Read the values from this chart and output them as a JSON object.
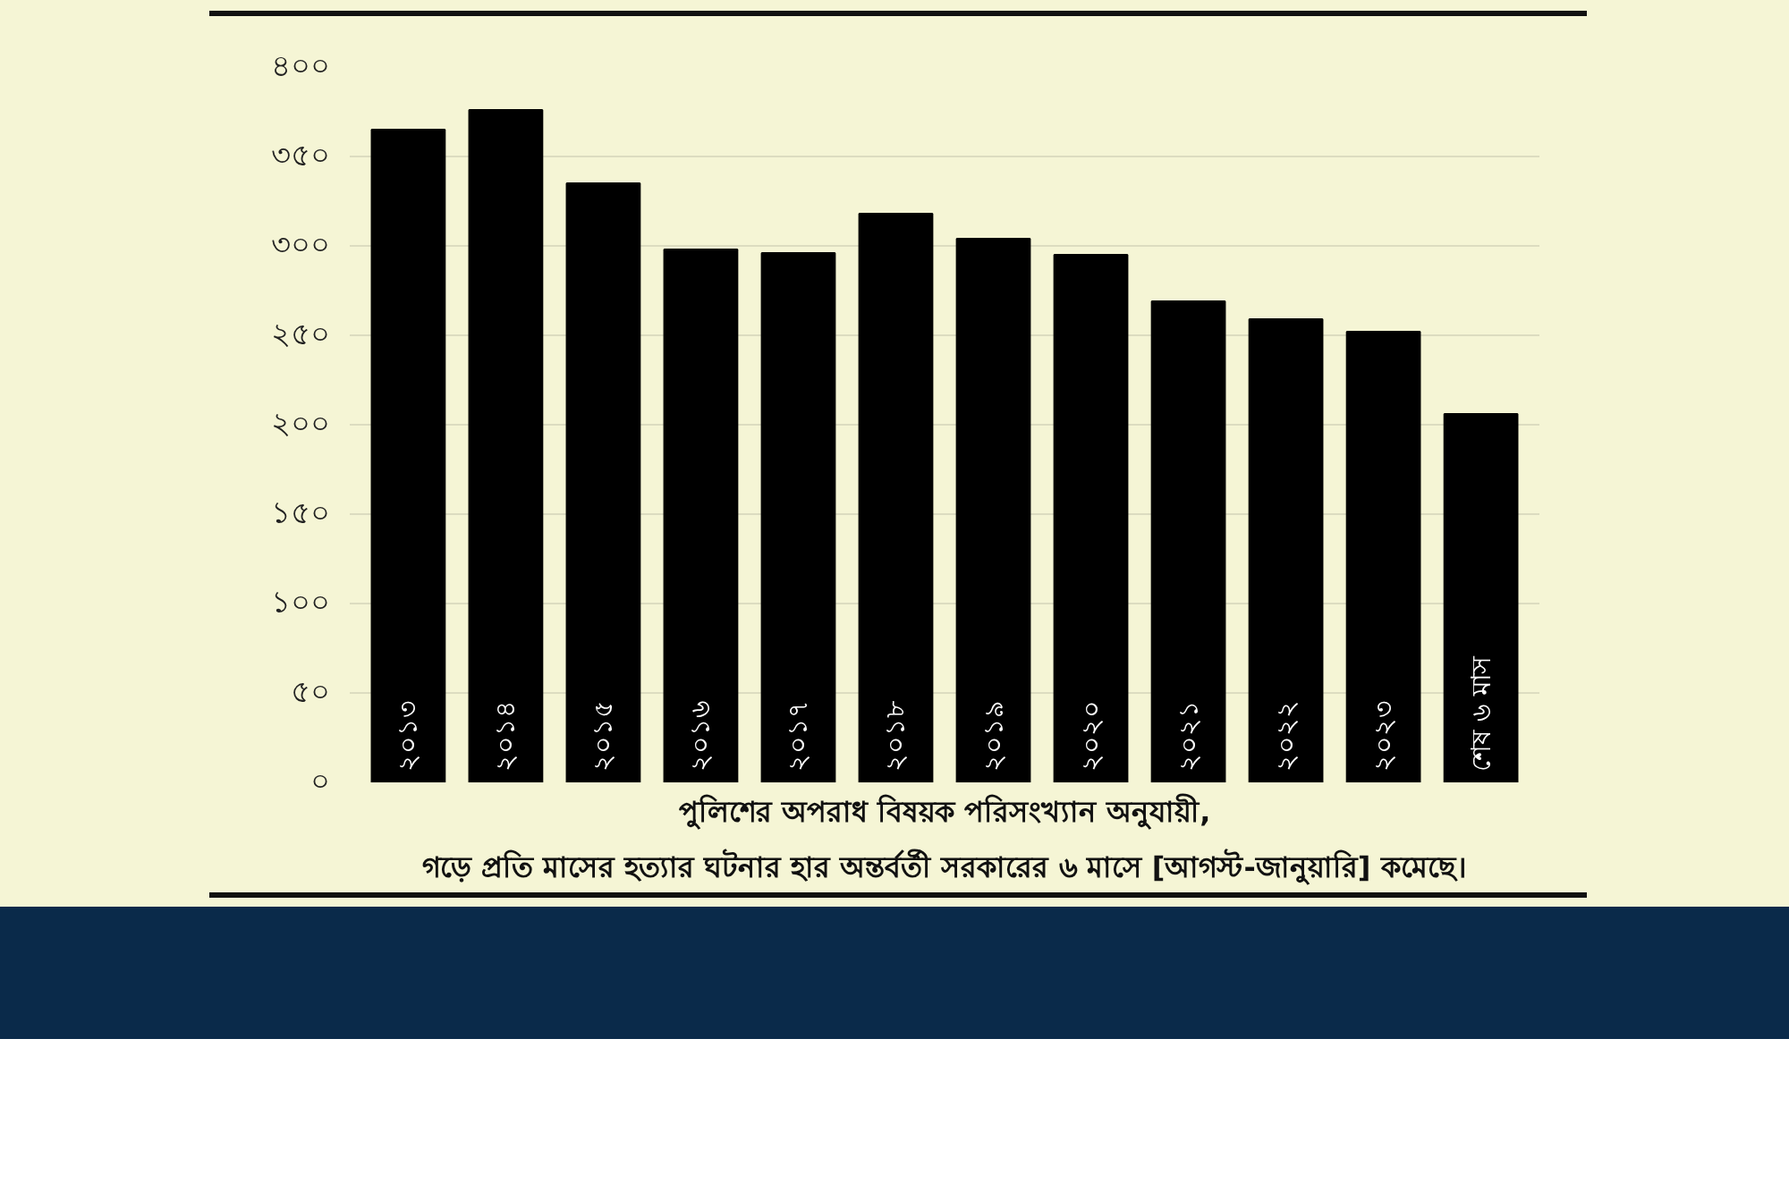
{
  "chart_data": {
    "type": "bar",
    "categories": [
      "২০১৩",
      "২০১৪",
      "২০১৫",
      "২০১৬",
      "২০১৭",
      "২০১৮",
      "২০১৯",
      "২০২০",
      "২০২১",
      "২০২২",
      "২০২৩",
      "শেষ ৬ মাস"
    ],
    "values": [
      365,
      376,
      335,
      298,
      296,
      318,
      304,
      295,
      269,
      259,
      252,
      206
    ],
    "color": "#000000",
    "ylim": [
      0,
      400
    ],
    "yticks": [
      {
        "value": 0,
        "label": "০"
      },
      {
        "value": 50,
        "label": "৫০"
      },
      {
        "value": 100,
        "label": "১০০"
      },
      {
        "value": 150,
        "label": "১৫০"
      },
      {
        "value": 200,
        "label": "২০০"
      },
      {
        "value": 250,
        "label": "২৫০"
      },
      {
        "value": 300,
        "label": "৩০০"
      },
      {
        "value": 350,
        "label": "৩৫০"
      },
      {
        "value": 400,
        "label": "৪০০"
      }
    ],
    "grid": "y",
    "annotations": [
      "পুলিশের অপরাধ বিষয়ক পরিসংখ্যান অনুযায়ী,",
      "গড়ে প্রতি মাসের হত্যার ঘটনার হার অন্তর্বর্তী সরকারের ৬ মাসে [আগস্ট-জানুয়ারি] কমেছে।"
    ]
  }
}
